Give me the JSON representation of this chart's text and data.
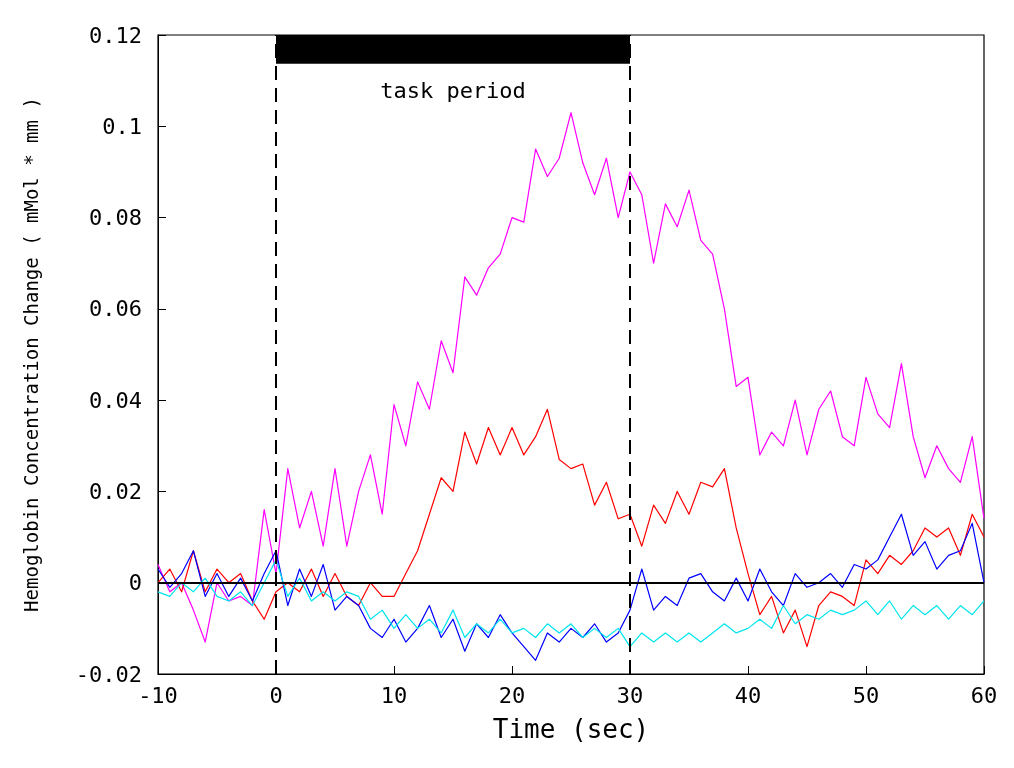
{
  "chart_data": {
    "type": "line",
    "xlabel": "Time (sec)",
    "ylabel": "Hemoglobin Concentration Change ( mMol * mm )",
    "x": [
      -10,
      -9,
      -8,
      -7,
      -6,
      -5,
      -4,
      -3,
      -2,
      -1,
      0,
      1,
      2,
      3,
      4,
      5,
      6,
      7,
      8,
      9,
      10,
      11,
      12,
      13,
      14,
      15,
      16,
      17,
      18,
      19,
      20,
      21,
      22,
      23,
      24,
      25,
      26,
      27,
      28,
      29,
      30,
      31,
      32,
      33,
      34,
      35,
      36,
      37,
      38,
      39,
      40,
      41,
      42,
      43,
      44,
      45,
      46,
      47,
      48,
      49,
      50,
      51,
      52,
      53,
      54,
      55,
      56,
      57,
      58,
      59,
      60
    ],
    "series": [
      {
        "color": "#ff00ff",
        "values": [
          0.004,
          -0.002,
          0.0,
          -0.006,
          -0.013,
          0.0,
          -0.004,
          -0.003,
          -0.005,
          0.016,
          0.002,
          0.025,
          0.012,
          0.02,
          0.008,
          0.025,
          0.008,
          0.02,
          0.028,
          0.015,
          0.039,
          0.03,
          0.044,
          0.038,
          0.053,
          0.046,
          0.067,
          0.063,
          0.069,
          0.072,
          0.08,
          0.079,
          0.095,
          0.089,
          0.093,
          0.103,
          0.092,
          0.085,
          0.093,
          0.08,
          0.09,
          0.085,
          0.07,
          0.083,
          0.078,
          0.086,
          0.075,
          0.072,
          0.06,
          0.043,
          0.045,
          0.028,
          0.033,
          0.03,
          0.04,
          0.028,
          0.038,
          0.042,
          0.032,
          0.03,
          0.045,
          0.037,
          0.034,
          0.048,
          0.032,
          0.023,
          0.03,
          0.025,
          0.022,
          0.032,
          0.014
        ]
      },
      {
        "color": "#ff0000",
        "values": [
          0.0,
          0.003,
          -0.002,
          0.007,
          -0.002,
          0.003,
          0.0,
          0.002,
          -0.004,
          -0.008,
          -0.002,
          0.0,
          -0.002,
          0.003,
          -0.003,
          0.002,
          -0.003,
          -0.005,
          0.0,
          -0.003,
          -0.003,
          0.002,
          0.007,
          0.015,
          0.023,
          0.02,
          0.033,
          0.026,
          0.034,
          0.028,
          0.034,
          0.028,
          0.032,
          0.038,
          0.027,
          0.025,
          0.026,
          0.017,
          0.022,
          0.014,
          0.015,
          0.008,
          0.017,
          0.013,
          0.02,
          0.015,
          0.022,
          0.021,
          0.025,
          0.012,
          0.002,
          -0.007,
          -0.003,
          -0.011,
          -0.006,
          -0.014,
          -0.005,
          -0.002,
          -0.003,
          -0.005,
          0.005,
          0.002,
          0.006,
          0.004,
          0.007,
          0.012,
          0.01,
          0.012,
          0.006,
          0.015,
          0.01
        ]
      },
      {
        "color": "#0000ff",
        "values": [
          0.003,
          -0.001,
          0.002,
          0.007,
          -0.003,
          0.002,
          -0.003,
          0.001,
          -0.004,
          0.002,
          0.007,
          -0.005,
          0.003,
          -0.003,
          0.004,
          -0.006,
          -0.003,
          -0.005,
          -0.01,
          -0.012,
          -0.008,
          -0.013,
          -0.01,
          -0.005,
          -0.012,
          -0.008,
          -0.015,
          -0.009,
          -0.012,
          -0.007,
          -0.011,
          -0.014,
          -0.017,
          -0.011,
          -0.013,
          -0.01,
          -0.012,
          -0.009,
          -0.013,
          -0.011,
          -0.006,
          0.003,
          -0.006,
          -0.003,
          -0.005,
          0.001,
          0.002,
          -0.002,
          -0.004,
          0.001,
          -0.004,
          0.003,
          -0.002,
          -0.005,
          0.002,
          -0.001,
          0.0,
          0.002,
          -0.001,
          0.004,
          0.003,
          0.005,
          0.01,
          0.015,
          0.006,
          0.009,
          0.003,
          0.006,
          0.007,
          0.013,
          0.0
        ]
      },
      {
        "color": "#00e5ee",
        "values": [
          -0.002,
          -0.003,
          0.0,
          -0.002,
          0.001,
          -0.003,
          -0.004,
          -0.002,
          -0.005,
          0.0,
          0.005,
          -0.003,
          0.001,
          -0.004,
          -0.002,
          -0.004,
          -0.002,
          -0.003,
          -0.008,
          -0.006,
          -0.01,
          -0.007,
          -0.01,
          -0.008,
          -0.011,
          -0.006,
          -0.012,
          -0.009,
          -0.011,
          -0.008,
          -0.011,
          -0.01,
          -0.012,
          -0.009,
          -0.011,
          -0.009,
          -0.012,
          -0.01,
          -0.012,
          -0.01,
          -0.014,
          -0.011,
          -0.013,
          -0.011,
          -0.013,
          -0.011,
          -0.013,
          -0.011,
          -0.009,
          -0.011,
          -0.01,
          -0.008,
          -0.01,
          -0.005,
          -0.009,
          -0.007,
          -0.008,
          -0.006,
          -0.007,
          -0.006,
          -0.004,
          -0.007,
          -0.004,
          -0.008,
          -0.005,
          -0.007,
          -0.005,
          -0.008,
          -0.005,
          -0.007,
          -0.004
        ]
      }
    ],
    "xlim": [
      -10,
      60
    ],
    "xticks": [
      -10,
      0,
      10,
      20,
      30,
      40,
      50,
      60
    ],
    "ylim": [
      -0.02,
      0.12
    ],
    "yticks": [
      -0.02,
      0,
      0.02,
      0.04,
      0.06,
      0.08,
      0.1,
      0.12
    ],
    "ref_lines": [
      {
        "axis": "x",
        "value": 0,
        "line_style": "dashed",
        "color": "#000000"
      },
      {
        "axis": "x",
        "value": 30,
        "line_style": "dashed",
        "color": "#000000"
      },
      {
        "axis": "y",
        "value": 0,
        "line_style": "solid",
        "color": "#000000"
      }
    ],
    "bands": [
      {
        "axis": "x",
        "from": 0,
        "to": 30,
        "label": "task period",
        "color": "#000000"
      }
    ],
    "grid": false,
    "marker": "none",
    "line_style": "solid"
  }
}
